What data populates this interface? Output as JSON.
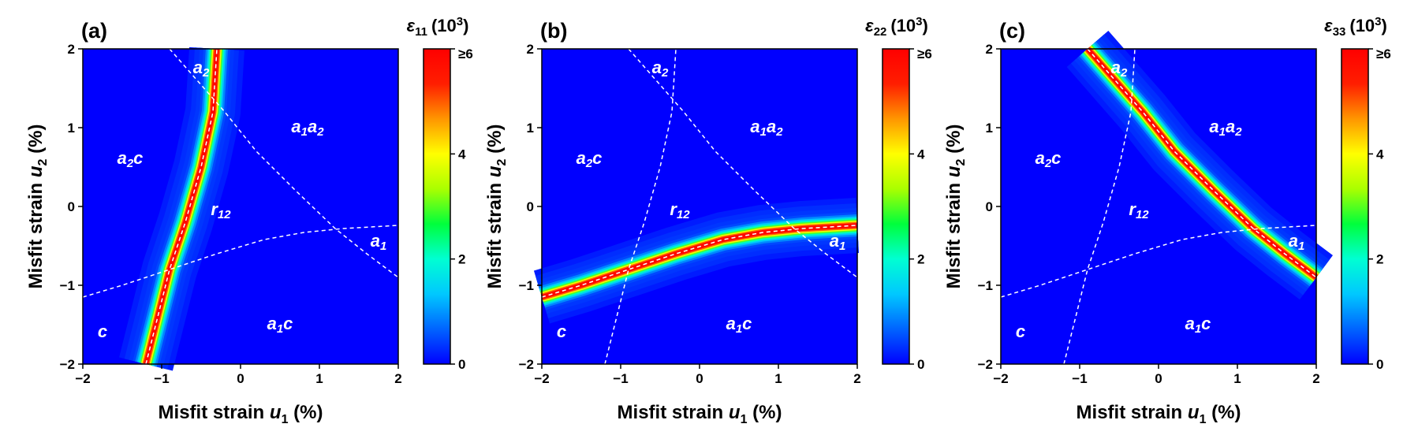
{
  "colormap": [
    "#0000ff",
    "#0064ff",
    "#00c8ff",
    "#00ffd2",
    "#00ff3c",
    "#aaff00",
    "#ffff00",
    "#ff9600",
    "#ff1e00",
    "#ff0000"
  ],
  "boundary_color": "#ffffff",
  "chart_data": [
    {
      "type": "heatmap",
      "panel": "(a)",
      "quantity": "ε11",
      "colorbar": {
        "label_var": "ε",
        "label_sub": "11",
        "label_unit": "(10",
        "label_sup": "3",
        "label_close": ")",
        "ticks": [
          "0",
          "2",
          "4",
          "≥6"
        ],
        "range": [
          0,
          6
        ]
      },
      "x": {
        "label_prefix": "Misfit strain ",
        "label_var": "u",
        "label_sub": "1",
        "label_unit": " (%)",
        "range": [
          -2,
          2
        ],
        "ticks": [
          -2,
          -1,
          0,
          1,
          2
        ],
        "tick_labels": [
          "−2",
          "−1",
          "0",
          "1",
          "2"
        ]
      },
      "y": {
        "label_prefix": "Misfit strain ",
        "label_var": "u",
        "label_sub": "2",
        "label_unit": " (%)",
        "range": [
          -2,
          2
        ],
        "ticks": [
          -2,
          -1,
          0,
          1,
          2
        ],
        "tick_labels": [
          "−2",
          "−1",
          "0",
          "1",
          "2"
        ]
      },
      "peak_curve": "A"
    },
    {
      "type": "heatmap",
      "panel": "(b)",
      "quantity": "ε22",
      "colorbar": {
        "label_var": "ε",
        "label_sub": "22",
        "label_unit": "(10",
        "label_sup": "3",
        "label_close": ")",
        "ticks": [
          "0",
          "2",
          "4",
          "≥6"
        ],
        "range": [
          0,
          6
        ]
      },
      "x": {
        "label_prefix": "Misfit strain ",
        "label_var": "u",
        "label_sub": "1",
        "label_unit": " (%)",
        "range": [
          -2,
          2
        ],
        "ticks": [
          -2,
          -1,
          0,
          1,
          2
        ],
        "tick_labels": [
          "−2",
          "−1",
          "0",
          "1",
          "2"
        ]
      },
      "y": {
        "label_prefix": "Misfit strain ",
        "label_var": "u",
        "label_sub": "2",
        "label_unit": " (%)",
        "range": [
          -2,
          2
        ],
        "ticks": [
          -2,
          -1,
          0,
          1,
          2
        ],
        "tick_labels": [
          "−2",
          "−1",
          "0",
          "1",
          "2"
        ]
      },
      "peak_curve": "B"
    },
    {
      "type": "heatmap",
      "panel": "(c)",
      "quantity": "ε33",
      "colorbar": {
        "label_var": "ε",
        "label_sub": "33",
        "label_unit": "(10",
        "label_sup": "3",
        "label_close": ")",
        "ticks": [
          "0",
          "2",
          "4",
          "≥6"
        ],
        "range": [
          0,
          6
        ]
      },
      "x": {
        "label_prefix": "Misfit strain ",
        "label_var": "u",
        "label_sub": "1",
        "label_unit": " (%)",
        "range": [
          -2,
          2
        ],
        "ticks": [
          -2,
          -1,
          0,
          1,
          2
        ],
        "tick_labels": [
          "−2",
          "−1",
          "0",
          "1",
          "2"
        ]
      },
      "y": {
        "label_prefix": "Misfit strain ",
        "label_var": "u",
        "label_sub": "2",
        "label_unit": " (%)",
        "range": [
          -2,
          2
        ],
        "ticks": [
          -2,
          -1,
          0,
          1,
          2
        ],
        "tick_labels": [
          "−2",
          "−1",
          "0",
          "1",
          "2"
        ]
      },
      "peak_curve": "C"
    }
  ],
  "phase_boundaries": {
    "A": [
      [
        -1.2,
        -2.0
      ],
      [
        -1.05,
        -1.4
      ],
      [
        -0.9,
        -0.8
      ],
      [
        -0.7,
        -0.2
      ],
      [
        -0.5,
        0.5
      ],
      [
        -0.35,
        1.2
      ],
      [
        -0.3,
        2.0
      ]
    ],
    "B": [
      [
        -2.0,
        -1.15
      ],
      [
        -1.5,
        -1.0
      ],
      [
        -0.9,
        -0.8
      ],
      [
        -0.3,
        -0.6
      ],
      [
        0.3,
        -0.42
      ],
      [
        0.8,
        -0.33
      ],
      [
        1.3,
        -0.28
      ],
      [
        2.0,
        -0.24
      ]
    ],
    "C": [
      [
        -0.9,
        2.0
      ],
      [
        -0.55,
        1.6
      ],
      [
        -0.2,
        1.2
      ],
      [
        0.2,
        0.7
      ],
      [
        0.7,
        0.2
      ],
      [
        1.2,
        -0.28
      ],
      [
        1.6,
        -0.6
      ],
      [
        2.0,
        -0.9
      ]
    ]
  },
  "phase_regions": [
    {
      "base": "a",
      "sub": "2",
      "base2": "",
      "sub2": "",
      "tail": "",
      "u1": -0.5,
      "u2": 1.75
    },
    {
      "base": "a",
      "sub": "1",
      "base2": "a",
      "sub2": "2",
      "tail": "",
      "u1": 0.85,
      "u2": 1.0
    },
    {
      "base": "a",
      "sub": "2",
      "base2": "",
      "sub2": "",
      "tail": "c",
      "u1": -1.4,
      "u2": 0.6
    },
    {
      "base": "r",
      "sub": "12",
      "base2": "",
      "sub2": "",
      "tail": "",
      "u1": -0.25,
      "u2": -0.05
    },
    {
      "base": "a",
      "sub": "1",
      "base2": "",
      "sub2": "",
      "tail": "",
      "u1": 1.75,
      "u2": -0.45
    },
    {
      "base": "a",
      "sub": "1",
      "base2": "",
      "sub2": "",
      "tail": "c",
      "u1": 0.5,
      "u2": -1.5
    },
    {
      "base": "c",
      "sub": "",
      "base2": "",
      "sub2": "",
      "tail": "",
      "u1": -1.75,
      "u2": -1.6
    }
  ]
}
